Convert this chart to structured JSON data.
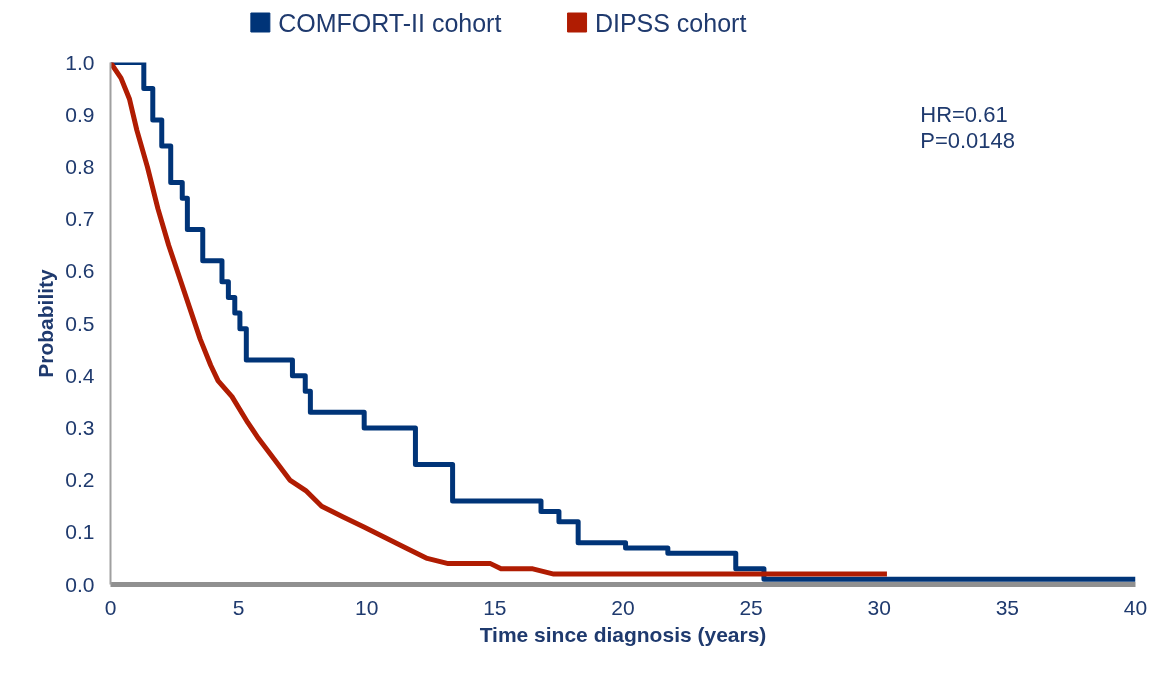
{
  "chart_data": {
    "type": "step",
    "xlabel": "Time since diagnosis (years)",
    "ylabel": "Probability",
    "xlim": [
      0,
      40
    ],
    "xticks": [
      0,
      5,
      10,
      15,
      20,
      25,
      30,
      35,
      40
    ],
    "ylim": [
      0,
      1.0
    ],
    "yticks": [
      {
        "value": 0,
        "label": "0.0"
      },
      0.1,
      0.2,
      0.3,
      0.4,
      0.5,
      0.6,
      0.7,
      0.8,
      0.9,
      {
        "value": 1.0,
        "label": "1.0"
      }
    ],
    "grid": false,
    "legend": "top left",
    "marker": "none",
    "line_style": "solid",
    "annotations": [
      "HR=0.61",
      "P=0.0148"
    ],
    "series": [
      {
        "name": "COMFORT-II cohort",
        "color": "#003478",
        "x": [
          0,
          1.3,
          1.65,
          2.0,
          2.35,
          2.8,
          3.0,
          3.6,
          4.35,
          4.6,
          4.85,
          5.05,
          5.3,
          7.1,
          7.6,
          7.8,
          9.9,
          11.9,
          13.35,
          16.8,
          17.5,
          18.25,
          20.1,
          21.75,
          24.4,
          25.5,
          40
        ],
        "values": [
          1.0,
          0.95,
          0.89,
          0.84,
          0.77,
          0.74,
          0.68,
          0.62,
          0.58,
          0.55,
          0.52,
          0.49,
          0.43,
          0.4,
          0.37,
          0.33,
          0.3,
          0.23,
          0.16,
          0.14,
          0.12,
          0.08,
          0.07,
          0.06,
          0.03,
          0.01,
          0.01
        ]
      },
      {
        "name": "DIPSS cohort",
        "color": "#b01c02",
        "type": "line",
        "x": [
          0,
          0.41,
          0.74,
          1.03,
          1.44,
          1.85,
          2.27,
          2.68,
          3.09,
          3.5,
          3.91,
          4.2,
          4.74,
          5.36,
          5.77,
          6.39,
          7.0,
          7.62,
          8.24,
          9.06,
          9.89,
          10.71,
          11.53,
          12.36,
          13.18,
          14.0,
          14.83,
          15.24,
          16.48,
          17.3,
          27.6,
          27.8,
          30.3
        ],
        "values": [
          1.0,
          0.97,
          0.93,
          0.87,
          0.8,
          0.72,
          0.65,
          0.59,
          0.53,
          0.47,
          0.42,
          0.39,
          0.36,
          0.31,
          0.28,
          0.24,
          0.2,
          0.18,
          0.15,
          0.13,
          0.11,
          0.09,
          0.07,
          0.05,
          0.04,
          0.04,
          0.04,
          0.03,
          0.03,
          0.02,
          0.02,
          0.02,
          0.02
        ]
      }
    ]
  }
}
